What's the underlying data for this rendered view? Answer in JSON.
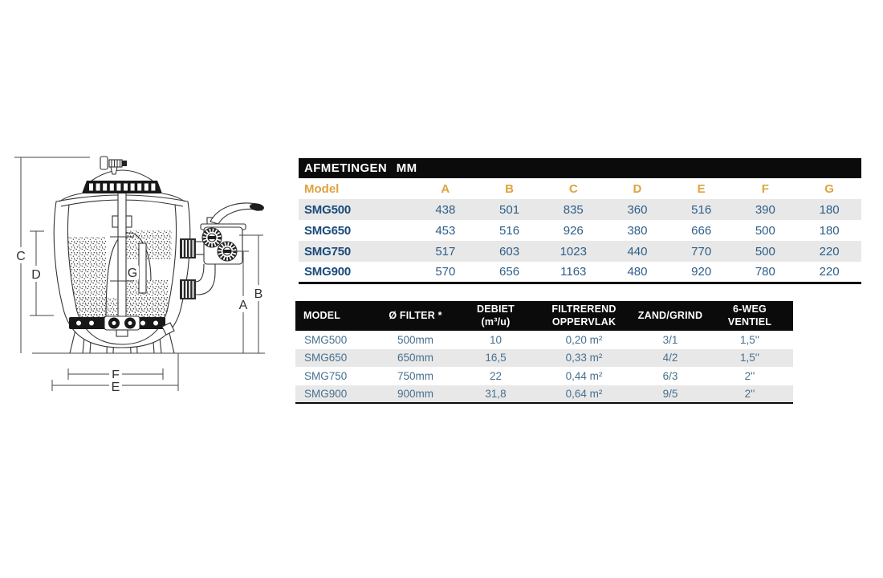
{
  "diagram": {
    "description": "sand filter cross-section with dimension lines",
    "dim_labels": {
      "a": "A",
      "b": "B",
      "c": "C",
      "d": "D",
      "e": "E",
      "f": "F",
      "g": "G"
    }
  },
  "afmetingen_table": {
    "title": "AFMETINGEN MM",
    "model_column_header": "Model",
    "dim_columns": [
      "A",
      "B",
      "C",
      "D",
      "E",
      "F",
      "G"
    ],
    "rows": [
      {
        "model": "SMG500",
        "values": [
          "438",
          "501",
          "835",
          "360",
          "516",
          "390",
          "180"
        ]
      },
      {
        "model": "SMG650",
        "values": [
          "453",
          "516",
          "926",
          "380",
          "666",
          "500",
          "180"
        ]
      },
      {
        "model": "SMG750",
        "values": [
          "517",
          "603",
          "1023",
          "440",
          "770",
          "500",
          "220"
        ]
      },
      {
        "model": "SMG900",
        "values": [
          "570",
          "656",
          "1163",
          "480",
          "920",
          "780",
          "220"
        ]
      }
    ]
  },
  "specs_table": {
    "headers": [
      "MODEL",
      "Ø FILTER *",
      "DEBIET\n(m³/u)",
      "FILTREREND\nOPPERVLAK",
      "ZAND/GRIND",
      "6-WEG\nVENTIEL"
    ],
    "rows": [
      [
        "SMG500",
        "500mm",
        "10",
        "0,20 m²",
        "3/1",
        "1,5''"
      ],
      [
        "SMG650",
        "650mm",
        "16,5",
        "0,33 m²",
        "4/2",
        "1,5''"
      ],
      [
        "SMG750",
        "750mm",
        "22",
        "0,44 m²",
        "6/3",
        "2''"
      ],
      [
        "SMG900",
        "900mm",
        "31,8",
        "0,64 m²",
        "9/5",
        "2''"
      ]
    ]
  },
  "colors": {
    "accent_orange": "#E0A33E",
    "model_navy": "#1A4A7A",
    "value_blue": "#2E5E88",
    "specs_text_blue": "#47708E",
    "header_black": "#0B0B0B",
    "row_stripe_gray": "#E8E8E8"
  }
}
